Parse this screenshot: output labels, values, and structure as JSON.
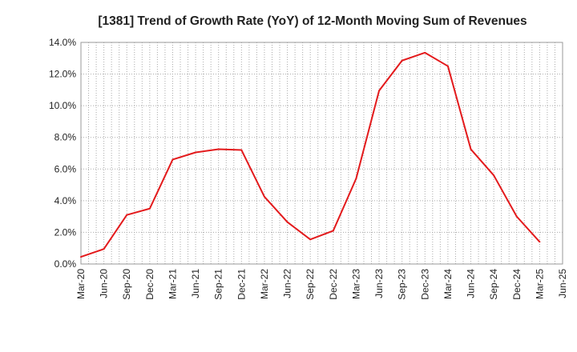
{
  "chart_data": {
    "type": "line",
    "title": "[1381]  Trend of Growth Rate (YoY) of 12-Month Moving Sum of Revenues",
    "xlabel": "",
    "ylabel": "",
    "ylim": [
      0,
      14
    ],
    "y_ticks": [
      "0.0%",
      "2.0%",
      "4.0%",
      "6.0%",
      "8.0%",
      "10.0%",
      "12.0%",
      "14.0%"
    ],
    "y_tick_values": [
      0,
      2,
      4,
      6,
      8,
      10,
      12,
      14
    ],
    "x_ticks": [
      "Mar-20",
      "Jun-20",
      "Sep-20",
      "Dec-20",
      "Mar-21",
      "Jun-21",
      "Sep-21",
      "Dec-21",
      "Mar-22",
      "Jun-22",
      "Sep-22",
      "Dec-22",
      "Mar-23",
      "Jun-23",
      "Sep-23",
      "Dec-23",
      "Mar-24",
      "Jun-24",
      "Sep-24",
      "Dec-24",
      "Mar-25",
      "Jun-25"
    ],
    "grid": true,
    "line_color": "#e31a1c",
    "series": [
      {
        "values": [
          0.45,
          0.95,
          3.1,
          3.5,
          6.6,
          7.05,
          7.25,
          7.2,
          4.25,
          2.65,
          1.55,
          2.1,
          5.4,
          10.95,
          12.85,
          13.35,
          12.5,
          7.25,
          5.6,
          3.0,
          1.4
        ]
      }
    ]
  }
}
